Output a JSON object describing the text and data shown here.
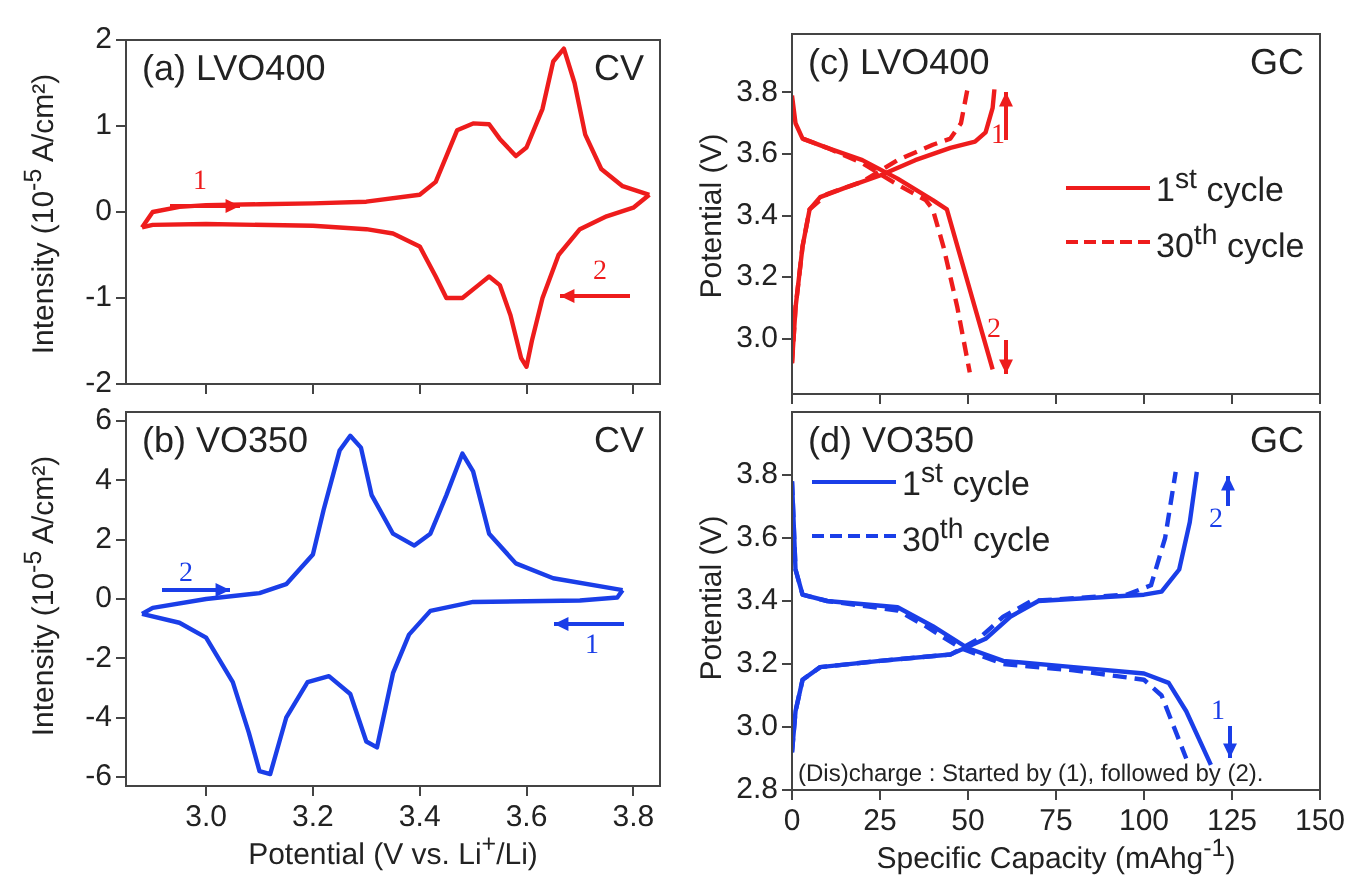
{
  "chart_data": [
    {
      "type": "line",
      "ylabel": "Intensity (10$^{-5}$ A/cm²)",
      "xlim": [
        2.85,
        3.85
      ],
      "xticks": [
        3,
        3.2,
        3.4,
        3.6,
        3.8
      ],
      "ylim": [
        -2,
        2
      ],
      "yticks": [
        -2,
        -1,
        0,
        1,
        2
      ],
      "tick_labels": "y",
      "annotations": [
        "(a) LVO400",
        "CV",
        "1",
        "2"
      ],
      "series": [
        {
          "color": "#ee1c1c",
          "x": [
            2.88,
            2.9,
            2.95,
            3.0,
            3.1,
            3.2,
            3.3,
            3.4,
            3.43,
            3.45,
            3.47,
            3.5,
            3.53,
            3.55,
            3.58,
            3.6,
            3.63,
            3.65,
            3.67,
            3.69,
            3.71,
            3.74,
            3.78,
            3.83
          ],
          "values": [
            -0.18,
            0.0,
            0.06,
            0.08,
            0.09,
            0.1,
            0.12,
            0.2,
            0.35,
            0.65,
            0.95,
            1.03,
            1.02,
            0.85,
            0.65,
            0.75,
            1.2,
            1.75,
            1.9,
            1.5,
            0.9,
            0.5,
            0.3,
            0.2
          ]
        },
        {
          "color": "#ee1c1c",
          "x": [
            3.83,
            3.8,
            3.75,
            3.7,
            3.66,
            3.63,
            3.61,
            3.6,
            3.59,
            3.57,
            3.55,
            3.53,
            3.51,
            3.48,
            3.45,
            3.43,
            3.4,
            3.35,
            3.3,
            3.2,
            3.0,
            2.9,
            2.88
          ],
          "values": [
            0.2,
            0.05,
            -0.05,
            -0.2,
            -0.5,
            -1.0,
            -1.5,
            -1.8,
            -1.7,
            -1.2,
            -0.85,
            -0.75,
            -0.85,
            -1.0,
            -1.0,
            -0.75,
            -0.4,
            -0.25,
            -0.2,
            -0.16,
            -0.14,
            -0.15,
            -0.18
          ]
        }
      ]
    },
    {
      "type": "line",
      "xlabel": "Potential (V vs. Li$^{+}$/Li)",
      "ylabel": "Intensity (10$^{-5}$ A/cm²)",
      "xlim": [
        2.85,
        3.85
      ],
      "xticks": [
        {
          "value": 3,
          "label": "3.0"
        },
        3.2,
        3.4,
        3.6,
        3.8
      ],
      "ylim": [
        -6.3,
        6.3
      ],
      "yticks": [
        -6,
        -4,
        -2,
        0,
        2,
        4,
        6
      ],
      "annotations": [
        "(b) VO350",
        "CV",
        "2",
        "1"
      ],
      "series": [
        {
          "color": "#1a3ee8",
          "x": [
            2.88,
            2.9,
            3.0,
            3.1,
            3.15,
            3.2,
            3.22,
            3.25,
            3.27,
            3.29,
            3.31,
            3.35,
            3.39,
            3.42,
            3.45,
            3.48,
            3.5,
            3.53,
            3.58,
            3.65,
            3.78
          ],
          "values": [
            -0.5,
            -0.3,
            0.0,
            0.2,
            0.5,
            1.5,
            3.0,
            5.0,
            5.5,
            5.1,
            3.5,
            2.2,
            1.8,
            2.2,
            3.5,
            4.9,
            4.3,
            2.2,
            1.2,
            0.7,
            0.3
          ]
        },
        {
          "color": "#1a3ee8",
          "x": [
            3.78,
            3.77,
            3.7,
            3.5,
            3.42,
            3.38,
            3.35,
            3.32,
            3.3,
            3.27,
            3.23,
            3.19,
            3.15,
            3.12,
            3.1,
            3.08,
            3.05,
            3.0,
            2.95,
            2.88
          ],
          "values": [
            0.3,
            0.05,
            -0.05,
            -0.1,
            -0.4,
            -1.2,
            -2.5,
            -5.0,
            -4.8,
            -3.2,
            -2.6,
            -2.8,
            -4.0,
            -5.9,
            -5.8,
            -4.5,
            -2.8,
            -1.3,
            -0.8,
            -0.5
          ]
        }
      ]
    },
    {
      "type": "line",
      "ylabel": "Potential (V)",
      "xlim": [
        0,
        150
      ],
      "xticks": [
        0,
        25,
        50,
        75,
        100,
        125,
        150
      ],
      "ylim": [
        2.82,
        3.99
      ],
      "yticks": [
        {
          "value": 3,
          "label": "3.0"
        },
        3.2,
        3.4,
        3.6,
        3.8
      ],
      "tick_labels": "y",
      "legend": "right",
      "annotations": [
        "(c) LVO400",
        "GC",
        "1",
        "2"
      ],
      "series": [
        {
          "name": "1$^{st}$ cycle",
          "color": "#ee1c1c",
          "line_style": "solid",
          "x": [
            0,
            1,
            3,
            5,
            8,
            15,
            25,
            35,
            45,
            52,
            55,
            57,
            57.5
          ],
          "values": [
            2.92,
            3.1,
            3.3,
            3.42,
            3.46,
            3.49,
            3.53,
            3.58,
            3.62,
            3.64,
            3.67,
            3.75,
            3.81
          ]
        },
        {
          "color": "#ee1c1c",
          "line_style": "solid",
          "x": [
            0,
            1,
            3,
            10,
            20,
            30,
            40,
            44,
            47,
            52,
            57
          ],
          "values": [
            3.79,
            3.7,
            3.65,
            3.62,
            3.58,
            3.52,
            3.45,
            3.42,
            3.3,
            3.1,
            2.9
          ]
        },
        {
          "name": "30$^{th}$ cycle",
          "color": "#ee1c1c",
          "line_style": "dashed",
          "x": [
            0,
            1,
            3,
            5,
            10,
            20,
            30,
            40,
            45,
            48,
            50
          ],
          "values": [
            2.92,
            3.1,
            3.3,
            3.42,
            3.47,
            3.51,
            3.58,
            3.63,
            3.65,
            3.7,
            3.82
          ]
        },
        {
          "color": "#ee1c1c",
          "line_style": "dashed",
          "x": [
            3,
            10,
            20,
            30,
            38,
            40,
            43,
            47,
            50.5
          ],
          "values": [
            3.65,
            3.62,
            3.57,
            3.5,
            3.45,
            3.42,
            3.3,
            3.1,
            2.89
          ]
        }
      ]
    },
    {
      "type": "line",
      "xlabel": "Specific Capacity (mAhg$^{-1}$)",
      "ylabel": "Potential (V)",
      "xlim": [
        0,
        150
      ],
      "xticks": [
        0,
        25,
        50,
        75,
        100,
        125,
        150
      ],
      "ylim": [
        2.8,
        4.0
      ],
      "yticks": [
        2.8,
        {
          "value": 3,
          "label": "3.0"
        },
        3.2,
        3.4,
        3.6,
        3.8
      ],
      "legend": "top left",
      "annotations": [
        "(d) VO350",
        "GC",
        "(Dis)charge : Started by (1), followed by (2).",
        "2",
        "1"
      ],
      "series": [
        {
          "name": "1$^{st}$ cycle",
          "color": "#1a3ee8",
          "line_style": "solid",
          "x": [
            0,
            1,
            3,
            8,
            25,
            45,
            55,
            62,
            70,
            100,
            105,
            110,
            113,
            115
          ],
          "values": [
            2.92,
            3.05,
            3.15,
            3.19,
            3.21,
            3.23,
            3.28,
            3.35,
            3.4,
            3.42,
            3.43,
            3.5,
            3.65,
            3.81
          ]
        },
        {
          "color": "#1a3ee8",
          "line_style": "solid",
          "x": [
            0,
            1,
            3,
            10,
            30,
            40,
            50,
            60,
            80,
            100,
            107,
            112,
            119
          ],
          "values": [
            3.78,
            3.5,
            3.42,
            3.4,
            3.38,
            3.32,
            3.25,
            3.21,
            3.19,
            3.17,
            3.14,
            3.05,
            2.88
          ]
        },
        {
          "name": "30$^{th}$ cycle",
          "color": "#1a3ee8",
          "line_style": "dashed",
          "x": [
            0,
            1,
            3,
            8,
            25,
            45,
            53,
            60,
            68,
            95,
            102,
            106,
            109
          ],
          "values": [
            2.92,
            3.05,
            3.15,
            3.19,
            3.21,
            3.23,
            3.28,
            3.35,
            3.4,
            3.42,
            3.45,
            3.6,
            3.81
          ]
        },
        {
          "color": "#1a3ee8",
          "line_style": "dashed",
          "x": [
            0,
            1,
            3,
            10,
            30,
            38,
            48,
            60,
            80,
            100,
            105,
            112
          ],
          "values": [
            3.78,
            3.5,
            3.42,
            3.4,
            3.37,
            3.32,
            3.25,
            3.2,
            3.18,
            3.15,
            3.1,
            2.9
          ]
        }
      ]
    }
  ]
}
